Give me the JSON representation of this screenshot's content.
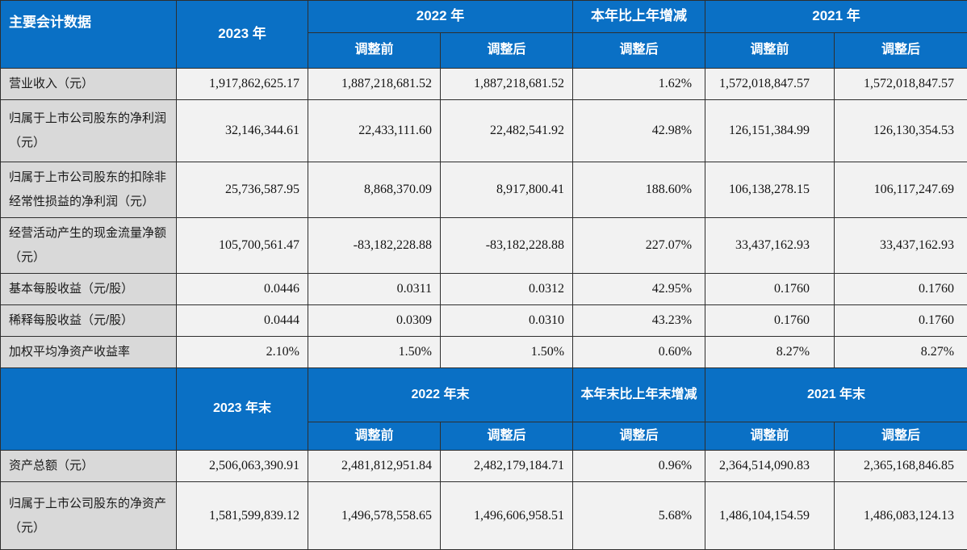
{
  "colors": {
    "header_blue": "#0a70c5",
    "label_bg": "#d9d9d9",
    "cell_bg": "#f2f2f2",
    "border": "#2e2e2e",
    "header_text": "#ffffff"
  },
  "section1": {
    "header": {
      "corner": "主要会计数据",
      "y2023": "2023 年",
      "y2022": "2022 年",
      "change": "本年比上年增减",
      "y2021": "2021 年",
      "adj_before_2022": "调整前",
      "adj_after_2022": "调整后",
      "adj_after_change": "调整后",
      "adj_before_2021": "调整前",
      "adj_after_2021": "调整后"
    },
    "rows": [
      {
        "label": "营业收入（元）",
        "values": [
          "1,917,862,625.17",
          "1,887,218,681.52",
          "1,887,218,681.52",
          "1.62%",
          "1,572,018,847.57",
          "1,572,018,847.57"
        ]
      },
      {
        "label": "归属于上市公司股东的净利润（元）",
        "values": [
          "32,146,344.61",
          "22,433,111.60",
          "22,482,541.92",
          "42.98%",
          "126,151,384.99",
          "126,130,354.53"
        ]
      },
      {
        "label": "归属于上市公司股东的扣除非经常性损益的净利润（元）",
        "values": [
          "25,736,587.95",
          "8,868,370.09",
          "8,917,800.41",
          "188.60%",
          "106,138,278.15",
          "106,117,247.69"
        ]
      },
      {
        "label": "经营活动产生的现金流量净额（元）",
        "values": [
          "105,700,561.47",
          "-83,182,228.88",
          "-83,182,228.88",
          "227.07%",
          "33,437,162.93",
          "33,437,162.93"
        ]
      },
      {
        "label": "基本每股收益（元/股）",
        "values": [
          "0.0446",
          "0.0311",
          "0.0312",
          "42.95%",
          "0.1760",
          "0.1760"
        ]
      },
      {
        "label": "稀释每股收益（元/股）",
        "values": [
          "0.0444",
          "0.0309",
          "0.0310",
          "43.23%",
          "0.1760",
          "0.1760"
        ]
      },
      {
        "label": "加权平均净资产收益率",
        "values": [
          "2.10%",
          "1.50%",
          "1.50%",
          "0.60%",
          "8.27%",
          "8.27%"
        ]
      }
    ]
  },
  "section2": {
    "header": {
      "corner": "",
      "y2023": "2023 年末",
      "y2022": "2022 年末",
      "change": "本年末比上年末增减",
      "y2021": "2021 年末",
      "adj_before_2022": "调整前",
      "adj_after_2022": "调整后",
      "adj_after_change": "调整后",
      "adj_before_2021": "调整前",
      "adj_after_2021": "调整后"
    },
    "rows": [
      {
        "label": "资产总额（元）",
        "values": [
          "2,506,063,390.91",
          "2,481,812,951.84",
          "2,482,179,184.71",
          "0.96%",
          "2,364,514,090.83",
          "2,365,168,846.85"
        ]
      },
      {
        "label": "归属于上市公司股东的净资产（元）",
        "values": [
          "1,581,599,839.12",
          "1,496,578,558.65",
          "1,496,606,958.51",
          "5.68%",
          "1,486,104,154.59",
          "1,486,083,124.13"
        ]
      }
    ]
  }
}
